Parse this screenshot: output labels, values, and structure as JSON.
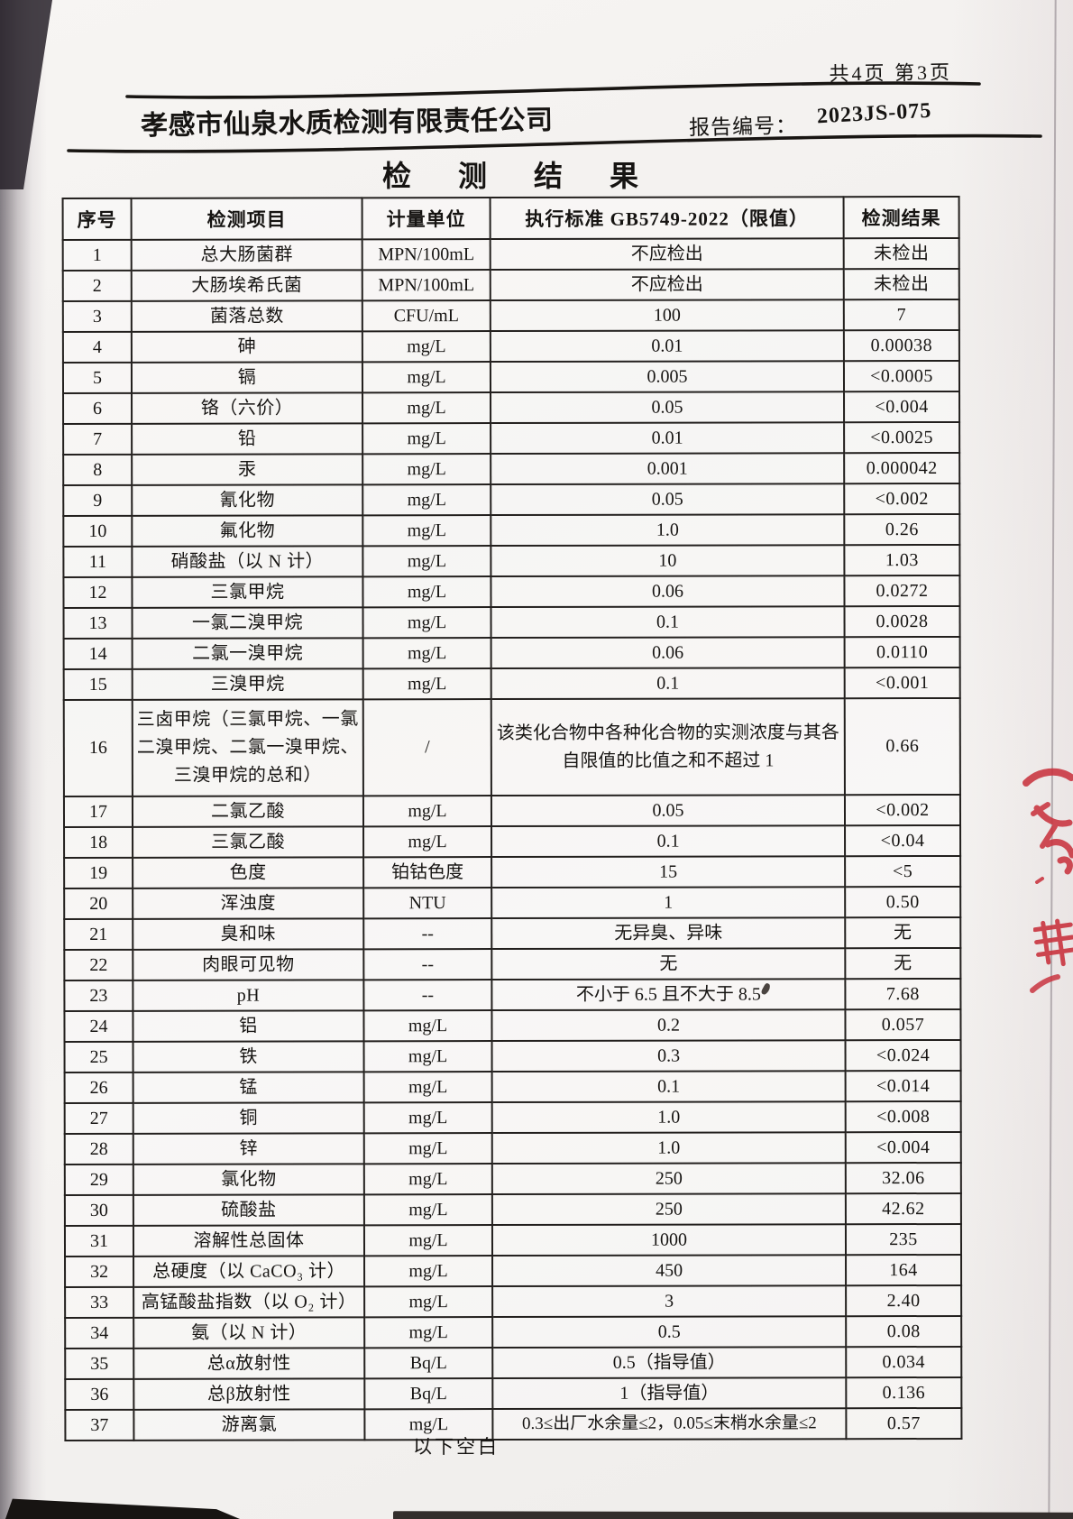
{
  "page": {
    "page_info": "共4页 第3页",
    "company": "孝感市仙泉水质检测有限责任公司",
    "report_no_label": "报告编号：",
    "report_no": "2023JS-075",
    "title": "检 测 结 果",
    "footer_note": "以下空白"
  },
  "table": {
    "headers": [
      "序号",
      "检测项目",
      "计量单位",
      "执行标准 GB5749-2022（限值）",
      "检测结果"
    ],
    "rows": [
      [
        "1",
        "总大肠菌群",
        "MPN/100mL",
        "不应检出",
        "未检出"
      ],
      [
        "2",
        "大肠埃希氏菌",
        "MPN/100mL",
        "不应检出",
        "未检出"
      ],
      [
        "3",
        "菌落总数",
        "CFU/mL",
        "100",
        "7"
      ],
      [
        "4",
        "砷",
        "mg/L",
        "0.01",
        "0.00038"
      ],
      [
        "5",
        "镉",
        "mg/L",
        "0.005",
        "<0.0005"
      ],
      [
        "6",
        "铬（六价）",
        "mg/L",
        "0.05",
        "<0.004"
      ],
      [
        "7",
        "铅",
        "mg/L",
        "0.01",
        "<0.0025"
      ],
      [
        "8",
        "汞",
        "mg/L",
        "0.001",
        "0.000042"
      ],
      [
        "9",
        "氰化物",
        "mg/L",
        "0.05",
        "<0.002"
      ],
      [
        "10",
        "氟化物",
        "mg/L",
        "1.0",
        "0.26"
      ],
      [
        "11",
        "硝酸盐（以 N 计）",
        "mg/L",
        "10",
        "1.03"
      ],
      [
        "12",
        "三氯甲烷",
        "mg/L",
        "0.06",
        "0.0272"
      ],
      [
        "13",
        "一氯二溴甲烷",
        "mg/L",
        "0.1",
        "0.0028"
      ],
      [
        "14",
        "二氯一溴甲烷",
        "mg/L",
        "0.06",
        "0.0110"
      ],
      [
        "15",
        "三溴甲烷",
        "mg/L",
        "0.1",
        "<0.001"
      ],
      [
        "16",
        "三卤甲烷（三氯甲烷、一氯二溴甲烷、二氯一溴甲烷、三溴甲烷的总和）",
        "/",
        "该类化合物中各种化合物的实测浓度与其各自限值的比值之和不超过 1",
        "0.66"
      ],
      [
        "17",
        "二氯乙酸",
        "mg/L",
        "0.05",
        "<0.002"
      ],
      [
        "18",
        "三氯乙酸",
        "mg/L",
        "0.1",
        "<0.04"
      ],
      [
        "19",
        "色度",
        "铂钴色度",
        "15",
        "<5"
      ],
      [
        "20",
        "浑浊度",
        "NTU",
        "1",
        "0.50"
      ],
      [
        "21",
        "臭和味",
        "--",
        "无异臭、异味",
        "无"
      ],
      [
        "22",
        "肉眼可见物",
        "--",
        "无",
        "无"
      ],
      [
        "23",
        "pH",
        "--",
        "不小于 6.5 且不大于 8.5",
        "7.68"
      ],
      [
        "24",
        "铝",
        "mg/L",
        "0.2",
        "0.057"
      ],
      [
        "25",
        "铁",
        "mg/L",
        "0.3",
        "<0.024"
      ],
      [
        "26",
        "锰",
        "mg/L",
        "0.1",
        "<0.014"
      ],
      [
        "27",
        "铜",
        "mg/L",
        "1.0",
        "<0.008"
      ],
      [
        "28",
        "锌",
        "mg/L",
        "1.0",
        "<0.004"
      ],
      [
        "29",
        "氯化物",
        "mg/L",
        "250",
        "32.06"
      ],
      [
        "30",
        "硫酸盐",
        "mg/L",
        "250",
        "42.62"
      ],
      [
        "31",
        "溶解性总固体",
        "mg/L",
        "1000",
        "235"
      ],
      [
        "32",
        "总硬度（以 CaCO₃ 计）",
        "mg/L",
        "450",
        "164"
      ],
      [
        "33",
        "高锰酸盐指数（以 O₂ 计）",
        "mg/L",
        "3",
        "2.40"
      ],
      [
        "34",
        "氨（以 N 计）",
        "mg/L",
        "0.5",
        "0.08"
      ],
      [
        "35",
        "总α放射性",
        "Bq/L",
        "0.5（指导值）",
        "0.034"
      ],
      [
        "36",
        "总β放射性",
        "Bq/L",
        "1（指导值）",
        "0.136"
      ],
      [
        "37",
        "游离氯",
        "mg/L",
        "0.3≤出厂水余量≤2，0.05≤末梢水余量≤2",
        "0.57"
      ]
    ]
  },
  "colors": {
    "stamp_red": "#c9343f",
    "paper": "#f4f2f0",
    "ink": "#161412"
  }
}
